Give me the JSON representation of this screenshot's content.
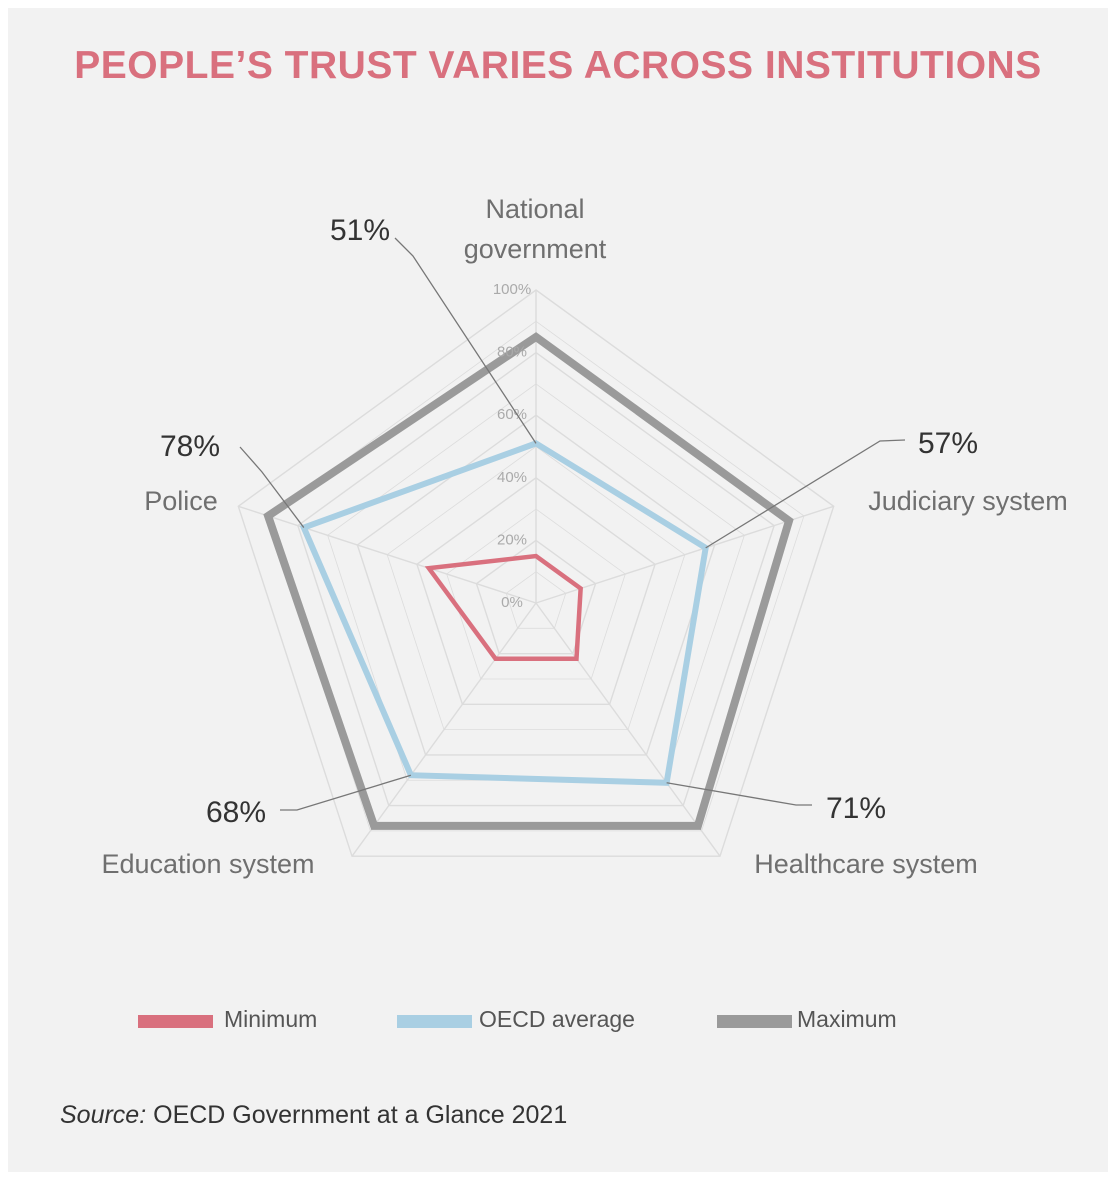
{
  "title": "PEOPLE’S TRUST VARIES ACROSS INSTITUTIONS",
  "source": {
    "label": "Source:",
    "text": "OECD Government at a Glance 2021"
  },
  "colors": {
    "minimum": "#d9707e",
    "average": "#a9cfe3",
    "maximum": "#9a9a9a",
    "grid": "#dcdcdc",
    "callout": "#777777"
  },
  "chart_data": {
    "type": "radar",
    "title": "PEOPLE’S TRUST VARIES ACROSS INSTITUTIONS",
    "axes": [
      {
        "name": "National government",
        "label_lines": [
          "National",
          "government"
        ],
        "callout": "51%"
      },
      {
        "name": "Judiciary system",
        "label_lines": [
          "Judiciary system"
        ],
        "callout": "57%"
      },
      {
        "name": "Healthcare system",
        "label_lines": [
          "Healthcare system"
        ],
        "callout": "71%"
      },
      {
        "name": "Education system",
        "label_lines": [
          "Education system"
        ],
        "callout": "68%"
      },
      {
        "name": "Police",
        "label_lines": [
          "Police"
        ],
        "callout": "78%"
      }
    ],
    "ticks": [
      "0%",
      "20%",
      "40%",
      "60%",
      "80%",
      "100%"
    ],
    "rlim": [
      0,
      100
    ],
    "series": [
      {
        "name": "Minimum",
        "values": [
          15,
          15,
          22,
          22,
          36
        ]
      },
      {
        "name": "OECD average",
        "values": [
          51,
          57,
          71,
          68,
          78
        ]
      },
      {
        "name": "Maximum",
        "values": [
          85,
          85,
          88,
          88,
          90
        ]
      }
    ],
    "legend": "bottom",
    "grid": true
  }
}
